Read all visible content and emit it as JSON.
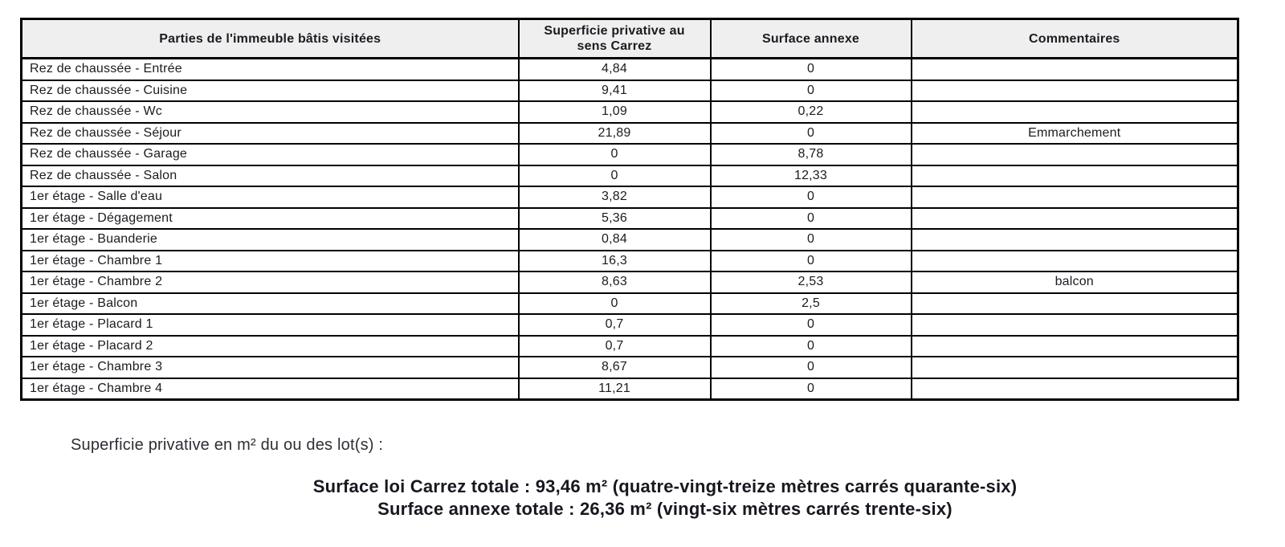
{
  "table": {
    "headers": [
      "Parties de l'immeuble bâtis visitées",
      "Superficie privative au sens Carrez",
      "Surface annexe",
      "Commentaires"
    ],
    "rows": [
      {
        "part": "Rez de chaussée - Entrée",
        "carrez": "4,84",
        "annexe": "0",
        "comment": ""
      },
      {
        "part": "Rez de chaussée - Cuisine",
        "carrez": "9,41",
        "annexe": "0",
        "comment": ""
      },
      {
        "part": "Rez de chaussée - Wc",
        "carrez": "1,09",
        "annexe": "0,22",
        "comment": ""
      },
      {
        "part": "Rez de chaussée - Séjour",
        "carrez": "21,89",
        "annexe": "0",
        "comment": "Emmarchement"
      },
      {
        "part": "Rez de chaussée - Garage",
        "carrez": "0",
        "annexe": "8,78",
        "comment": ""
      },
      {
        "part": "Rez de chaussée - Salon",
        "carrez": "0",
        "annexe": "12,33",
        "comment": ""
      },
      {
        "part": "1er étage - Salle d'eau",
        "carrez": "3,82",
        "annexe": "0",
        "comment": ""
      },
      {
        "part": "1er étage - Dégagement",
        "carrez": "5,36",
        "annexe": "0",
        "comment": ""
      },
      {
        "part": "1er étage - Buanderie",
        "carrez": "0,84",
        "annexe": "0",
        "comment": ""
      },
      {
        "part": "1er étage - Chambre 1",
        "carrez": "16,3",
        "annexe": "0",
        "comment": ""
      },
      {
        "part": "1er étage - Chambre 2",
        "carrez": "8,63",
        "annexe": "2,53",
        "comment": "balcon"
      },
      {
        "part": "1er étage - Balcon",
        "carrez": "0",
        "annexe": "2,5",
        "comment": ""
      },
      {
        "part": "1er étage - Placard 1",
        "carrez": "0,7",
        "annexe": "0",
        "comment": ""
      },
      {
        "part": "1er étage - Placard 2",
        "carrez": "0,7",
        "annexe": "0",
        "comment": ""
      },
      {
        "part": "1er étage - Chambre 3",
        "carrez": "8,67",
        "annexe": "0",
        "comment": ""
      },
      {
        "part": "1er étage - Chambre 4",
        "carrez": "11,21",
        "annexe": "0",
        "comment": ""
      }
    ]
  },
  "footer": {
    "lot_label": "Superficie privative en m² du ou des lot(s) :",
    "total_carrez": "Surface loi Carrez totale : 93,46 m² (quatre-vingt-treize mètres carrés quarante-six)",
    "total_annexe": "Surface annexe totale : 26,36 m² (vingt-six mètres carrés trente-six)"
  },
  "colors": {
    "header_background": "#efefef",
    "border": "#000000",
    "text": "#1b1b22"
  }
}
